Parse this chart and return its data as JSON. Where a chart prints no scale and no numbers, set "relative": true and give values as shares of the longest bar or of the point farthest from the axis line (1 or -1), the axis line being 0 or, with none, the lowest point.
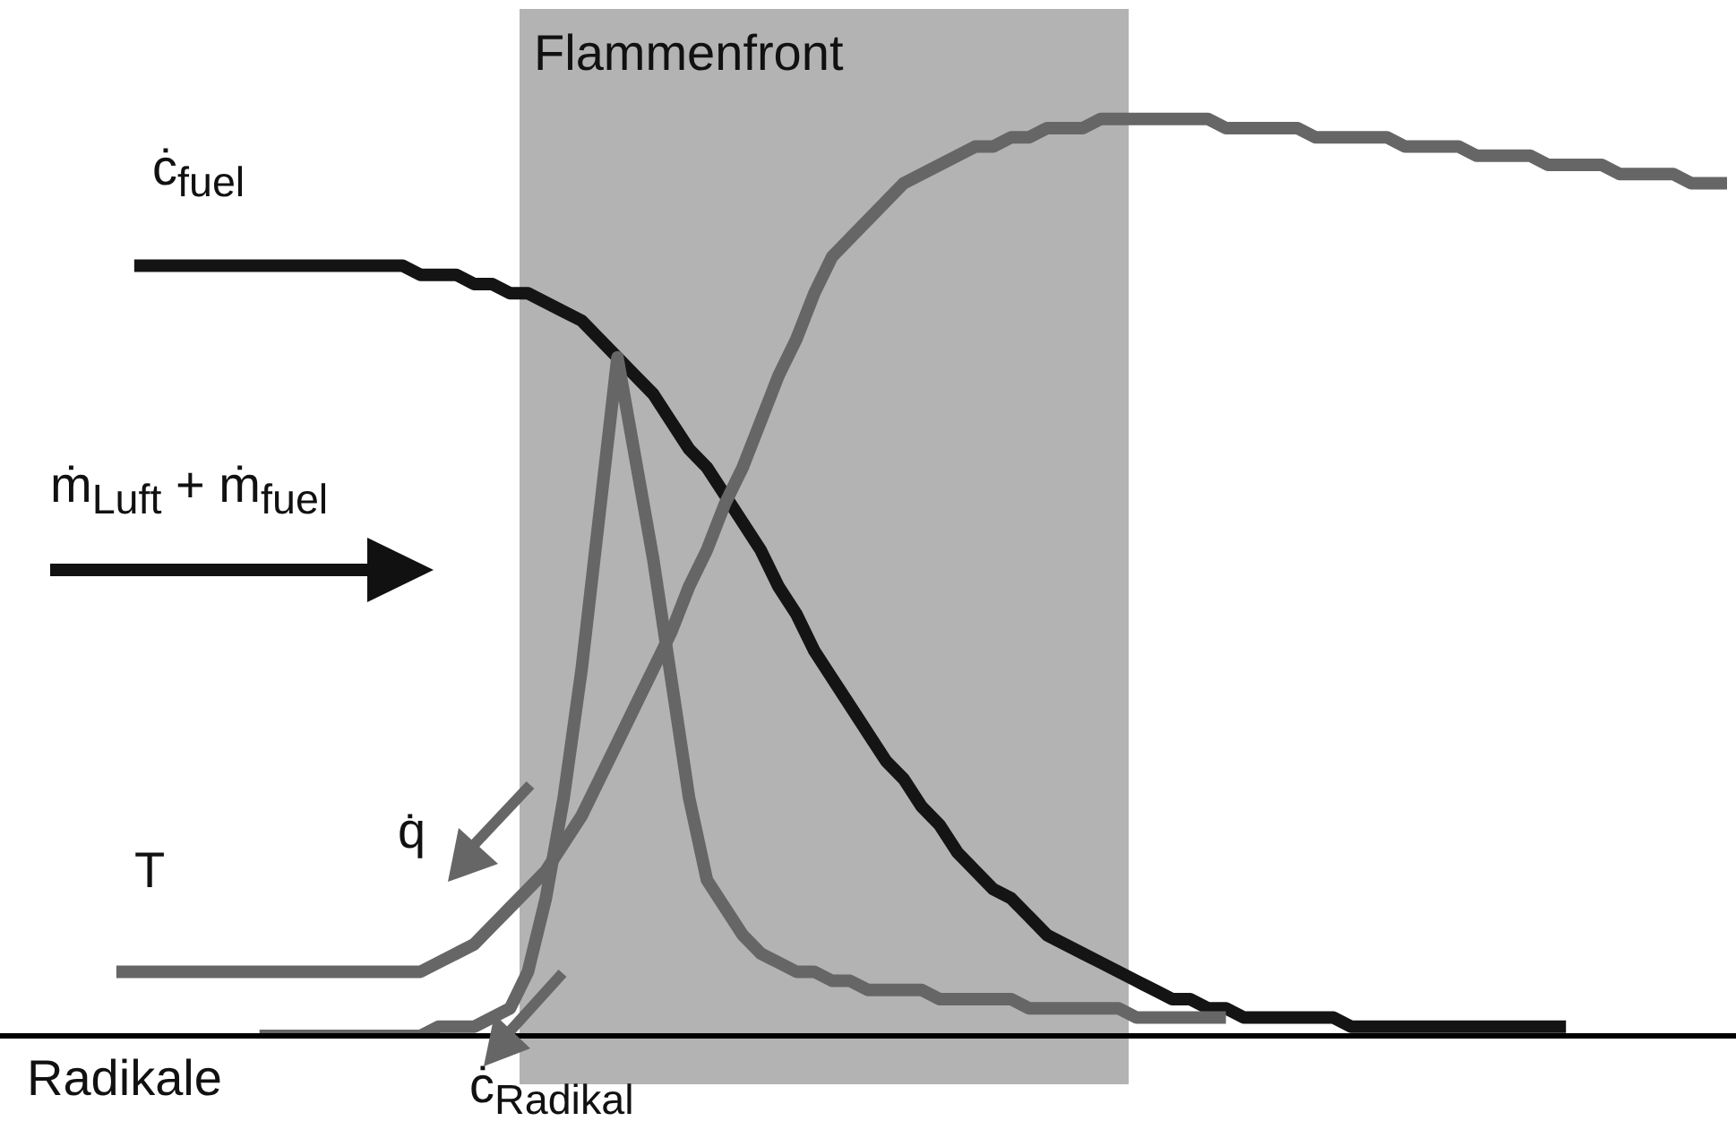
{
  "chart_data": {
    "type": "line",
    "relative": true,
    "categories": [
      null,
      null,
      null,
      null,
      null,
      null,
      null,
      null,
      null,
      null,
      null,
      null,
      null,
      null,
      null,
      null,
      null,
      null,
      null,
      null,
      null,
      null,
      null,
      null,
      null,
      null,
      null,
      null,
      null,
      null,
      null,
      null,
      null,
      null,
      null,
      null,
      null,
      null,
      null,
      null,
      null,
      null,
      null,
      null,
      null,
      null,
      null,
      null,
      null,
      null,
      null,
      null,
      null,
      null,
      null,
      null,
      null,
      null,
      null,
      null,
      null,
      null,
      null,
      null,
      null,
      null,
      null,
      null,
      null,
      null,
      null,
      null,
      null,
      null,
      null,
      null,
      null,
      null,
      null,
      null,
      null,
      null,
      null,
      null,
      null,
      null,
      null,
      null,
      null,
      null,
      null,
      null,
      null,
      null,
      null,
      null,
      null
    ],
    "series": [
      {
        "name": "ċ$_{fuel}$",
        "color": "#141414",
        "values": [
          null,
          null,
          null,
          null,
          null,
          null,
          null,
          0.84,
          0.84,
          0.84,
          0.84,
          0.84,
          0.84,
          0.84,
          0.84,
          0.84,
          0.84,
          0.84,
          0.84,
          0.84,
          0.84,
          0.84,
          0.84,
          0.83,
          0.83,
          0.83,
          0.82,
          0.82,
          0.81,
          0.81,
          0.8,
          0.79,
          0.78,
          0.76,
          0.74,
          0.72,
          0.7,
          0.67,
          0.64,
          0.62,
          0.59,
          0.56,
          0.53,
          0.49,
          0.46,
          0.42,
          0.39,
          0.36,
          0.33,
          0.3,
          0.28,
          0.25,
          0.23,
          0.2,
          0.18,
          0.16,
          0.15,
          0.13,
          0.11,
          0.1,
          0.09,
          0.08,
          0.07,
          0.06,
          0.05,
          0.04,
          0.04,
          0.03,
          0.03,
          0.02,
          0.02,
          0.02,
          0.02,
          0.02,
          0.02,
          0.01,
          0.01,
          0.01,
          0.01,
          0.01,
          0.01,
          0.01,
          0.01,
          0.01,
          0.01,
          0.01,
          0.01,
          0.01,
          null,
          null,
          null,
          null,
          null,
          null,
          null,
          null,
          null
        ]
      },
      {
        "name": "T",
        "color": "#666666",
        "values": [
          null,
          null,
          null,
          null,
          null,
          null,
          0.07,
          0.07,
          0.07,
          0.07,
          0.07,
          0.07,
          0.07,
          0.07,
          0.07,
          0.07,
          0.07,
          0.07,
          0.07,
          0.07,
          0.07,
          0.07,
          0.07,
          0.07,
          0.08,
          0.09,
          0.1,
          0.12,
          0.14,
          0.16,
          0.18,
          0.21,
          0.24,
          0.28,
          0.32,
          0.36,
          0.4,
          0.44,
          0.49,
          0.53,
          0.58,
          0.62,
          0.67,
          0.72,
          0.76,
          0.81,
          0.85,
          0.87,
          0.89,
          0.91,
          0.93,
          0.94,
          0.95,
          0.96,
          0.97,
          0.97,
          0.98,
          0.98,
          0.99,
          0.99,
          0.99,
          1.0,
          1.0,
          1.0,
          1.0,
          1.0,
          1.0,
          1.0,
          0.99,
          0.99,
          0.99,
          0.99,
          0.99,
          0.98,
          0.98,
          0.98,
          0.98,
          0.98,
          0.97,
          0.97,
          0.97,
          0.97,
          0.96,
          0.96,
          0.96,
          0.96,
          0.95,
          0.95,
          0.95,
          0.95,
          0.94,
          0.94,
          0.94,
          0.94,
          0.93,
          0.93,
          0.93
        ]
      },
      {
        "color": "#666666",
        "values": [
          null,
          null,
          null,
          null,
          null,
          null,
          null,
          null,
          null,
          null,
          null,
          null,
          null,
          null,
          0,
          0,
          0,
          0,
          0,
          0,
          0,
          0,
          0,
          0,
          0.01,
          0.01,
          0.01,
          0.02,
          0.03,
          0.07,
          0.15,
          0.26,
          0.4,
          0.57,
          0.74,
          0.63,
          0.52,
          0.39,
          0.26,
          0.17,
          0.14,
          0.11,
          0.09,
          0.08,
          0.07,
          0.07,
          0.06,
          0.06,
          0.05,
          0.05,
          0.05,
          0.05,
          0.04,
          0.04,
          0.04,
          0.04,
          0.04,
          0.03,
          0.03,
          0.03,
          0.03,
          0.03,
          0.03,
          0.02,
          0.02,
          0.02,
          0.02,
          0.02,
          0.02,
          null,
          null,
          null,
          null,
          null,
          null,
          null,
          null,
          null,
          null,
          null,
          null,
          null,
          null,
          null,
          null,
          null,
          null,
          null,
          null,
          null,
          null,
          null,
          null,
          null,
          null,
          null,
          null
        ]
      }
    ],
    "annotations": [
      "ṁ$_{Luft}$ + ṁ$_{fuel}$",
      "q̇",
      "ċ$_{Radikal}$",
      "Radikale",
      "Flammenfront"
    ]
  }
}
